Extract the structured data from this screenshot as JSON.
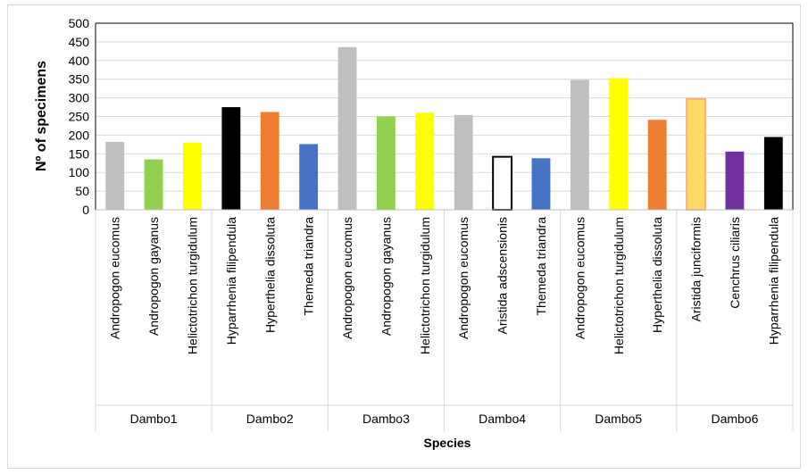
{
  "chart_data": {
    "type": "bar",
    "title": "",
    "xlabel": "Species",
    "ylabel": "Nº of specimens",
    "ylim": [
      0,
      500
    ],
    "yticks": [
      0,
      50,
      100,
      150,
      200,
      250,
      300,
      350,
      400,
      450,
      500
    ],
    "grid": true,
    "legend": "none",
    "groups": [
      {
        "name": "Dambo1",
        "bars": [
          {
            "species": "Andropogon eucomus",
            "value": 182,
            "color": "#bfbfbf"
          },
          {
            "species": "Andropogon gayanus",
            "value": 135,
            "color": "#92d050"
          },
          {
            "species": "Helictotrichon turgidulum",
            "value": 180,
            "color": "#ffff00"
          }
        ]
      },
      {
        "name": "Dambo2",
        "bars": [
          {
            "species": "Hyparrhenia filipendula",
            "value": 275,
            "color": "#000000"
          },
          {
            "species": "Hyperthelia dissoluta",
            "value": 262,
            "color": "#ed7d31"
          },
          {
            "species": "Themeda triandra",
            "value": 176,
            "color": "#4472c4"
          }
        ]
      },
      {
        "name": "Dambo3",
        "bars": [
          {
            "species": "Andropogon eucomus",
            "value": 436,
            "color": "#bfbfbf"
          },
          {
            "species": "Andropogon gayanus",
            "value": 250,
            "color": "#92d050"
          },
          {
            "species": "Helictotrichon turgidulum",
            "value": 260,
            "color": "#ffff00"
          }
        ]
      },
      {
        "name": "Dambo4",
        "bars": [
          {
            "species": "Andropogon eucomus",
            "value": 254,
            "color": "#bfbfbf"
          },
          {
            "species": "Aristida adscensionis",
            "value": 142,
            "color": "#ffffff",
            "stroke": "#000000"
          },
          {
            "species": "Themeda triandra",
            "value": 138,
            "color": "#4472c4"
          }
        ]
      },
      {
        "name": "Dambo5",
        "bars": [
          {
            "species": "Andropogon eucomus",
            "value": 348,
            "color": "#bfbfbf"
          },
          {
            "species": "Helictotrichon turgidulum",
            "value": 353,
            "color": "#ffff00"
          },
          {
            "species": "Hyperthelia dissoluta",
            "value": 241,
            "color": "#ed7d31"
          }
        ]
      },
      {
        "name": "Dambo6",
        "bars": [
          {
            "species": "Aristida junciformis",
            "value": 297,
            "color": "#ffd966",
            "stroke": "#f4b183"
          },
          {
            "species": "Cenchrus ciliaris",
            "value": 156,
            "color": "#7030a0"
          },
          {
            "species": "Hyparrhenia filipendula",
            "value": 195,
            "color": "#000000"
          }
        ]
      }
    ]
  }
}
